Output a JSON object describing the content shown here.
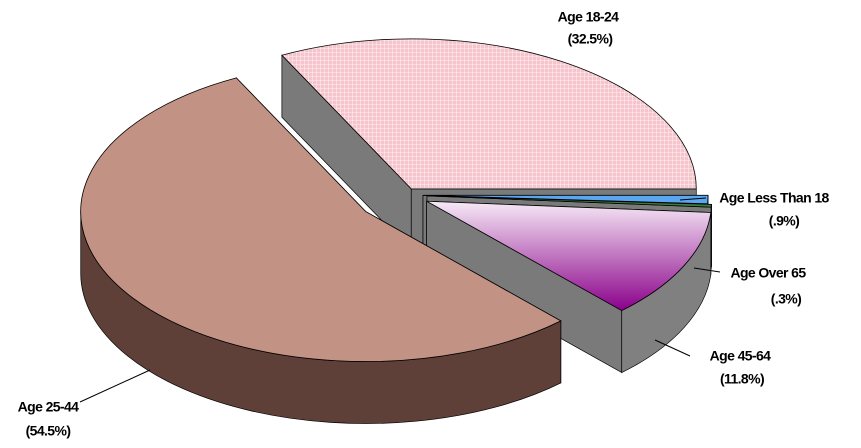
{
  "chart_data": {
    "type": "pie3d",
    "categories": [
      "Age 18-24",
      "Age Less Than 18",
      "Age Over 65",
      "Age 45-64",
      "Age 25-44"
    ],
    "values": [
      32.5,
      0.9,
      0.3,
      11.8,
      54.5
    ],
    "value_labels": [
      "(32.5%)",
      "(.9%)",
      "(.3%)",
      "(11.8%)",
      "(54.5%)"
    ],
    "colors": [
      "#f6c4cc",
      "#5aa6f0",
      "#3c7c3c",
      "#a020a0",
      "#c29284"
    ]
  }
}
